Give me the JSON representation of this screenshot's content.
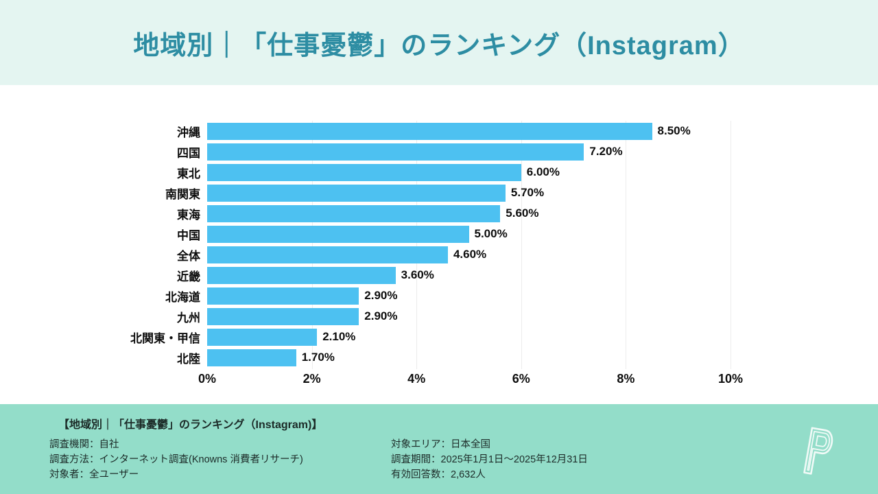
{
  "header": {
    "title": "地域別｜「仕事憂鬱」のランキング（Instagram）",
    "bg_color": "#e4f5f1",
    "title_color": "#2d8da3"
  },
  "chart_data": {
    "type": "bar",
    "orientation": "horizontal",
    "title": "地域別｜「仕事憂鬱」のランキング（Instagram）",
    "categories": [
      "沖縄",
      "四国",
      "東北",
      "南関東",
      "東海",
      "中国",
      "全体",
      "近畿",
      "北海道",
      "九州",
      "北関東・甲信",
      "北陸"
    ],
    "values": [
      8.5,
      7.2,
      6.0,
      5.7,
      5.6,
      5.0,
      4.6,
      3.6,
      2.9,
      2.9,
      2.1,
      1.7
    ],
    "value_labels": [
      "8.50%",
      "7.20%",
      "6.00%",
      "5.70%",
      "5.60%",
      "5.00%",
      "4.60%",
      "3.60%",
      "2.90%",
      "2.90%",
      "2.10%",
      "1.70%"
    ],
    "xlabel": "",
    "ylabel": "",
    "xlim": [
      0,
      10
    ],
    "x_ticks": [
      "0%",
      "2%",
      "4%",
      "6%",
      "8%",
      "10%"
    ],
    "x_tick_values": [
      0,
      2,
      4,
      6,
      8,
      10
    ],
    "grid": true,
    "legend": false,
    "bar_color": "#4dc1f1",
    "gridline_color": "#ececec"
  },
  "footer": {
    "heading": "【地域別｜「仕事憂鬱」のランキング（Instagram)】",
    "left_details": [
      "調査機関：自社",
      "調査方法：インターネット調査(Knowns 消費者リサーチ)",
      "対象者：全ユーザー"
    ],
    "right_details": [
      "対象エリア：日本全国",
      "調査期間：2025年1月1日～2025年12月31日",
      "有効回答数：2,632人"
    ],
    "bg_color": "#93ddc9",
    "logo_letter": "P"
  }
}
